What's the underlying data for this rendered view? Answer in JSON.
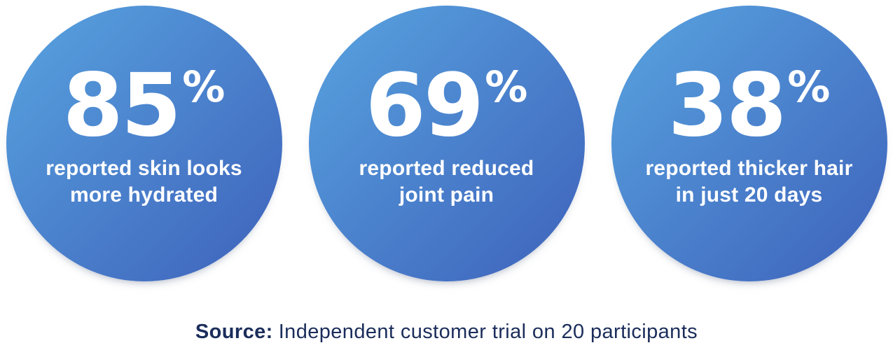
{
  "stats": [
    {
      "value": "85",
      "unit": "%",
      "label_line1": "reported skin looks",
      "label_line2": "more hydrated"
    },
    {
      "value": "69",
      "unit": "%",
      "label_line1": "reported reduced",
      "label_line2": "joint pain"
    },
    {
      "value": "38",
      "unit": "%",
      "label_line1": "reported thicker hair",
      "label_line2": "in just 20 days"
    }
  ],
  "footer": {
    "source_label": "Source:",
    "source_text": "Independent customer trial on 20 participants"
  },
  "colors": {
    "circle_gradient_start": "#58A4E0",
    "circle_gradient_end": "#3E62BB",
    "stat_text": "#FFFFFF",
    "source_text": "#1B2D5B",
    "background": "#FFFFFF"
  },
  "chart_data": {
    "type": "stat-circles",
    "categories": [
      "reported skin looks more hydrated",
      "reported reduced joint pain",
      "reported thicker hair in just 20 days"
    ],
    "values": [
      85,
      69,
      38
    ],
    "unit": "%",
    "title": "",
    "source": "Source: Independent customer trial on 20 participants",
    "legend": "none",
    "grid": "off"
  }
}
